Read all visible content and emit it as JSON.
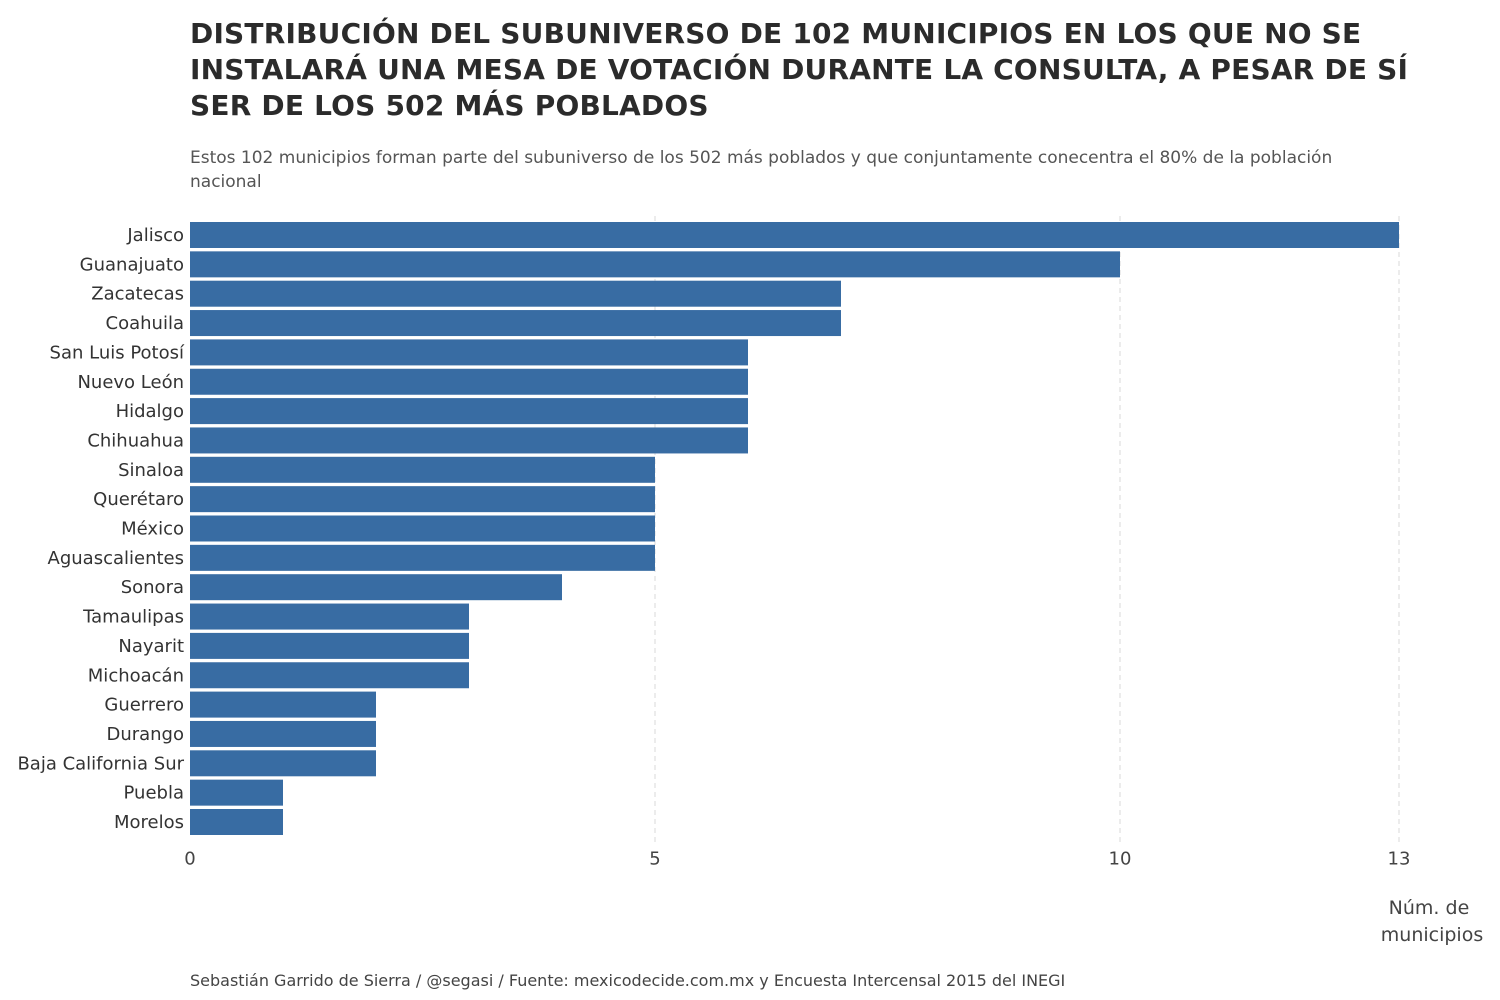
{
  "chart_data": {
    "type": "bar",
    "orientation": "horizontal",
    "title": "DISTRIBUCIÓN DEL SUBUNIVERSO DE 102 MUNICIPIOS EN LOS QUE NO SE INSTALARÁ UNA MESA DE VOTACIÓN DURANTE LA CONSULTA, A PESAR DE SÍ SER DE LOS 502 MÁS POBLADOS",
    "subtitle": "Estos 102 municipios forman parte del subuniverso de los 502 más poblados y que conjuntamente conecentra el 80% de la población nacional",
    "xlabel": "Núm. de municipios",
    "ylabel": "",
    "xlim": [
      0,
      13
    ],
    "xticks": [
      0,
      5,
      10,
      13
    ],
    "grid": true,
    "bar_color": "#386ca3",
    "categories": [
      "Jalisco",
      "Guanajuato",
      "Zacatecas",
      "Coahuila",
      "San Luis Potosí",
      "Nuevo León",
      "Hidalgo",
      "Chihuahua",
      "Sinaloa",
      "Querétaro",
      "México",
      "Aguascalientes",
      "Sonora",
      "Tamaulipas",
      "Nayarit",
      "Michoacán",
      "Guerrero",
      "Durango",
      "Baja California Sur",
      "Puebla",
      "Morelos"
    ],
    "values": [
      13,
      10,
      7,
      7,
      6,
      6,
      6,
      6,
      5,
      5,
      5,
      5,
      4,
      3,
      3,
      3,
      2,
      2,
      2,
      1,
      1
    ],
    "caption": "Sebastián Garrido de Sierra / @segasi / Fuente: mexicodecide.com.mx y Encuesta Intercensal 2015 del INEGI"
  }
}
